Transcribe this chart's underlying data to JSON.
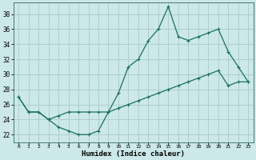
{
  "xlabel": "Humidex (Indice chaleur)",
  "bg_color": "#cce8e8",
  "grid_color": "#aacccc",
  "line_color": "#1a7060",
  "xlim": [
    -0.5,
    23.5
  ],
  "ylim": [
    21.0,
    39.5
  ],
  "xticks": [
    0,
    1,
    2,
    3,
    4,
    5,
    6,
    7,
    8,
    9,
    10,
    11,
    12,
    13,
    14,
    15,
    16,
    17,
    18,
    19,
    20,
    21,
    22,
    23
  ],
  "yticks": [
    22,
    24,
    26,
    28,
    30,
    32,
    34,
    36,
    38
  ],
  "line1_x": [
    0,
    1,
    2,
    3,
    4,
    5,
    6,
    7,
    8,
    9,
    10,
    11,
    12,
    13,
    14,
    15,
    16,
    17,
    18,
    19,
    20,
    21,
    22,
    23
  ],
  "line1_y": [
    27,
    25,
    25,
    24,
    23,
    22.5,
    22,
    22,
    22.5,
    25,
    27.5,
    31,
    32,
    34.5,
    36,
    39,
    35,
    34.5,
    35,
    35.5,
    36,
    33,
    31,
    29
  ],
  "line2_x": [
    0,
    1,
    2,
    3,
    4,
    5,
    6,
    7,
    8,
    9,
    10,
    11,
    12,
    13,
    14,
    15,
    16,
    17,
    18,
    19,
    20,
    21,
    22,
    23
  ],
  "line2_y": [
    27,
    25,
    25,
    24,
    24.5,
    25,
    25,
    25,
    25,
    25,
    25.5,
    26,
    26.5,
    27,
    27.5,
    28,
    28.5,
    29,
    29.5,
    30,
    30.5,
    28.5,
    29,
    29
  ]
}
